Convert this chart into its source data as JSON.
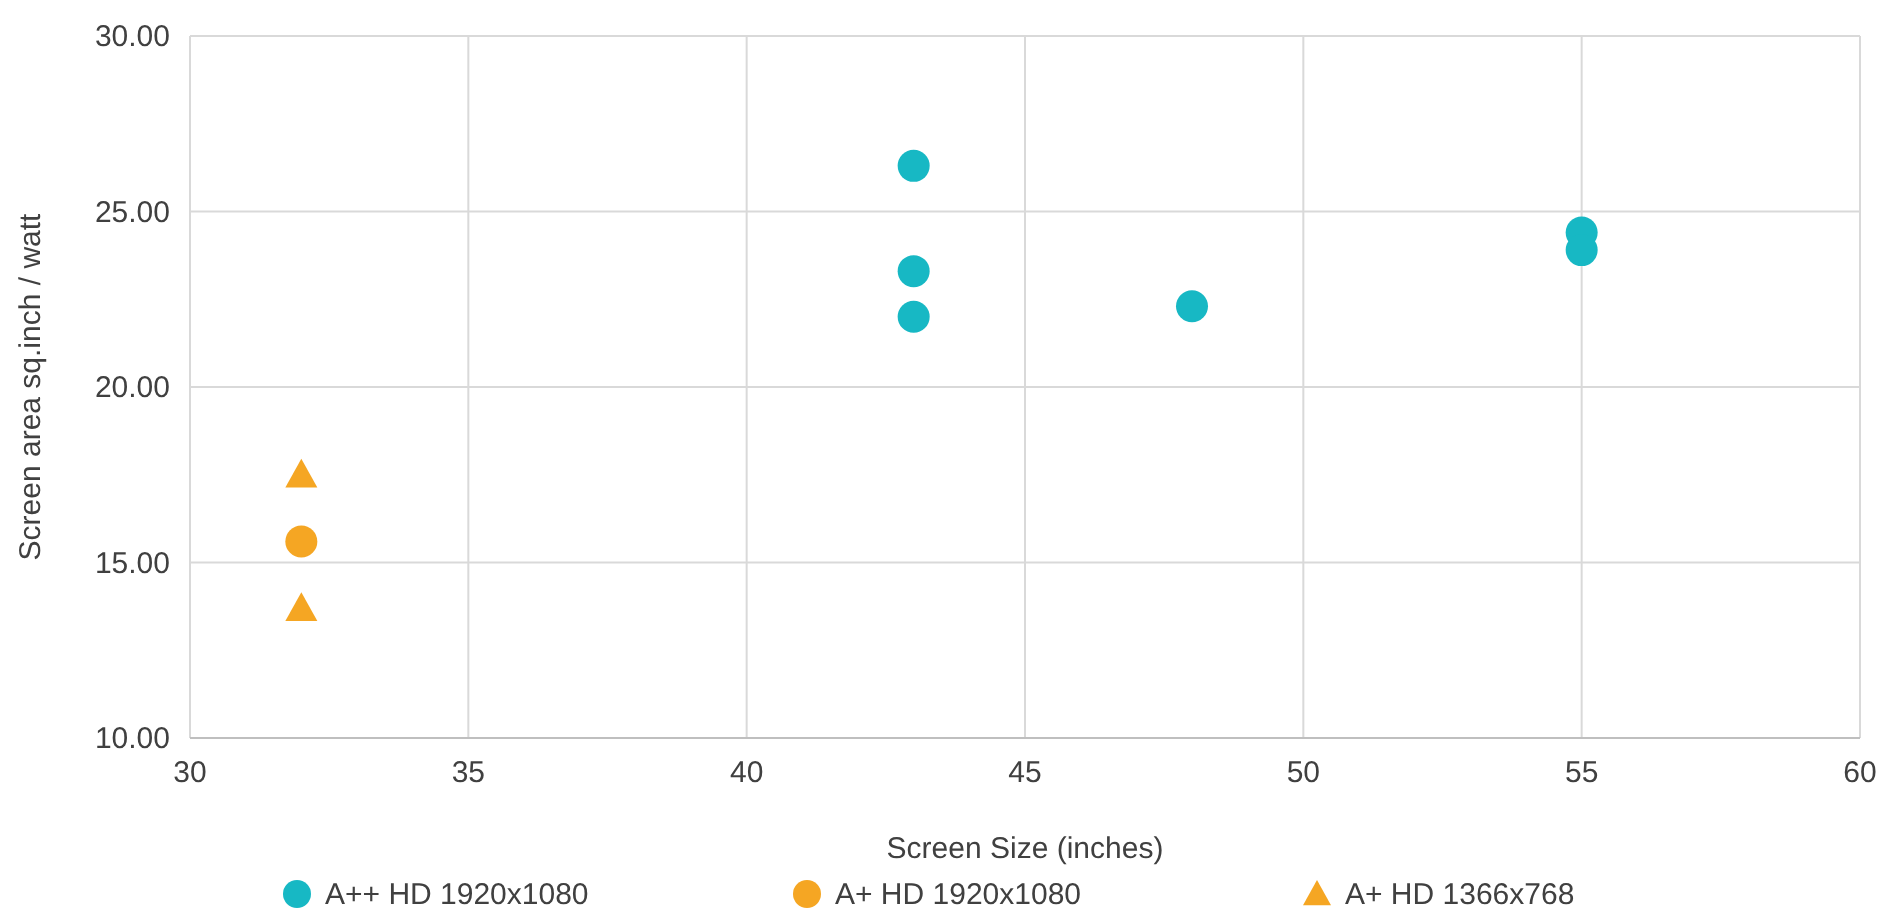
{
  "chart_data": {
    "type": "scatter",
    "xlabel": "Screen Size (inches)",
    "ylabel": "Screen area sq.inch / watt",
    "xlim": [
      30,
      60
    ],
    "xticks": [
      30,
      35,
      40,
      45,
      50,
      55,
      60
    ],
    "ylim": [
      10,
      30
    ],
    "yticks": [
      {
        "value": 10,
        "label": "10.00"
      },
      {
        "value": 15,
        "label": "15.00"
      },
      {
        "value": 20,
        "label": "20.00"
      },
      {
        "value": 25,
        "label": "25.00"
      },
      {
        "value": 30,
        "label": "30.00"
      }
    ],
    "grid": true,
    "legend": "bottom",
    "series": [
      {
        "name": "A++ HD 1920x1080",
        "color": "#17b8c4",
        "marker": "circle",
        "x": [
          43,
          43,
          43,
          48,
          55,
          55
        ],
        "values": [
          26.3,
          23.3,
          22.0,
          22.3,
          24.4,
          23.9
        ]
      },
      {
        "name": "A+ HD 1920x1080",
        "color": "#f5a623",
        "marker": "circle",
        "x": [
          32
        ],
        "values": [
          15.6
        ]
      },
      {
        "name": "A+ HD 1366x768",
        "color": "#f5a623",
        "marker": "triangle",
        "x": [
          32,
          32
        ],
        "values": [
          17.5,
          13.7
        ]
      }
    ]
  }
}
